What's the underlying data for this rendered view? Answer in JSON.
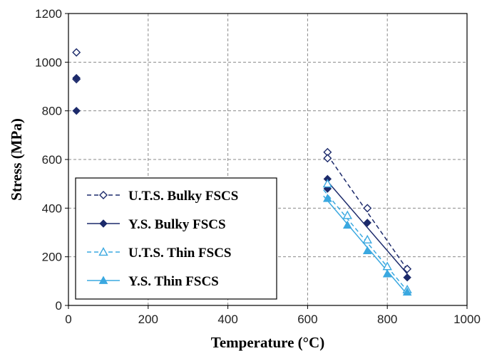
{
  "chart_data": {
    "type": "scatter",
    "xlabel": "Temperature (°C)",
    "ylabel": "Stress (MPa)",
    "xlim": [
      0,
      1000
    ],
    "ylim": [
      0,
      1200
    ],
    "xticks": [
      0,
      200,
      400,
      600,
      800,
      1000
    ],
    "yticks": [
      0,
      200,
      400,
      600,
      800,
      1000,
      1200
    ],
    "grid": true,
    "legend_position": "lower-left",
    "series": [
      {
        "name": "U.T.S. Bulky FSCS",
        "marker": "open-diamond",
        "line": "dashed",
        "color": "#1c2a6b",
        "points": [
          [
            20,
            1040
          ],
          [
            20,
            930
          ],
          [
            650,
            630
          ],
          [
            650,
            605
          ],
          [
            750,
            400
          ],
          [
            850,
            150
          ]
        ],
        "trendline": [
          [
            650,
            618
          ],
          [
            850,
            148
          ]
        ]
      },
      {
        "name": "Y.S. Bulky FSCS",
        "marker": "filled-diamond",
        "line": "solid",
        "color": "#1c2a6b",
        "points": [
          [
            20,
            935
          ],
          [
            20,
            800
          ],
          [
            650,
            520
          ],
          [
            650,
            480
          ],
          [
            750,
            340
          ],
          [
            850,
            115
          ]
        ],
        "trendline": [
          [
            650,
            510
          ],
          [
            850,
            130
          ]
        ]
      },
      {
        "name": "U.T.S. Thin FSCS",
        "marker": "open-triangle",
        "line": "dashed",
        "color": "#3aa8e0",
        "points": [
          [
            650,
            500
          ],
          [
            700,
            370
          ],
          [
            750,
            270
          ],
          [
            800,
            160
          ],
          [
            850,
            65
          ]
        ],
        "trendline": [
          [
            640,
            475
          ],
          [
            850,
            60
          ]
        ]
      },
      {
        "name": "Y.S. Thin FSCS",
        "marker": "filled-triangle",
        "line": "solid",
        "color": "#3aa8e0",
        "points": [
          [
            650,
            440
          ],
          [
            700,
            330
          ],
          [
            750,
            225
          ],
          [
            800,
            130
          ],
          [
            850,
            55
          ]
        ],
        "trendline": [
          [
            640,
            450
          ],
          [
            850,
            45
          ]
        ]
      }
    ]
  }
}
